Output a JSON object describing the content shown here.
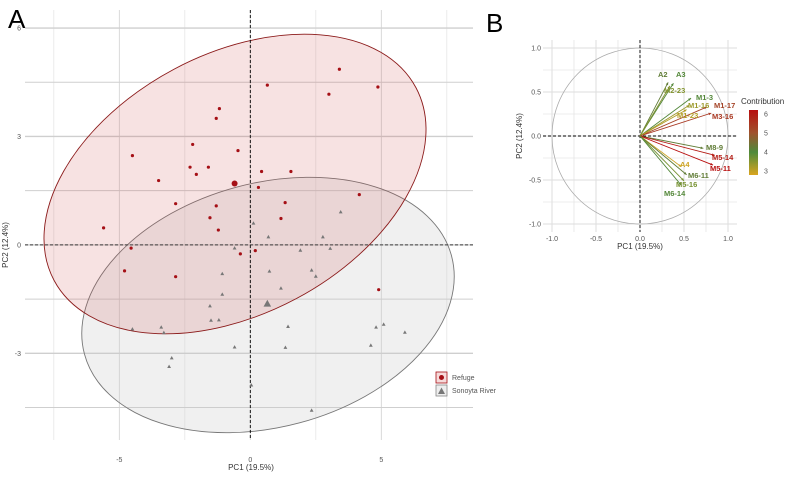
{
  "chart_data": [
    {
      "type": "scatter",
      "panel_label": "A",
      "xlabel": "PC1 (19.5%)",
      "ylabel": "PC2 (12.4%)",
      "xlim": [
        -8.6,
        8.5
      ],
      "ylim": [
        -5.4,
        6.5
      ],
      "xticks": [
        -5,
        0,
        5
      ],
      "yticks": [
        -3,
        0,
        3,
        6
      ],
      "grid": true,
      "reference_lines": {
        "x": 0,
        "y": 0,
        "style": "dashed"
      },
      "legend_position": "right",
      "colors": {
        "Refuge": "#a50f15",
        "Sonoyta River": "#777777"
      },
      "series": [
        {
          "name": "Refuge",
          "marker": "circle",
          "centroid": [
            -0.6,
            1.7
          ],
          "points": [
            [
              -5.6,
              0.47
            ],
            [
              -4.5,
              2.47
            ],
            [
              -4.55,
              -0.09
            ],
            [
              -4.8,
              -0.72
            ],
            [
              -3.5,
              1.78
            ],
            [
              -2.85,
              1.14
            ],
            [
              -2.85,
              -0.88
            ],
            [
              -2.3,
              2.15
            ],
            [
              -2.2,
              2.78
            ],
            [
              -2.06,
              1.95
            ],
            [
              -1.6,
              2.15
            ],
            [
              -1.54,
              0.75
            ],
            [
              -1.3,
              3.5
            ],
            [
              -1.3,
              1.08
            ],
            [
              -1.22,
              0.41
            ],
            [
              -1.18,
              3.77
            ],
            [
              -0.47,
              2.61
            ],
            [
              -0.38,
              -0.25
            ],
            [
              0.19,
              -0.16
            ],
            [
              0.31,
              1.59
            ],
            [
              0.43,
              2.03
            ],
            [
              0.65,
              4.42
            ],
            [
              1.17,
              0.73
            ],
            [
              1.33,
              1.17
            ],
            [
              1.55,
              2.03
            ],
            [
              3.0,
              4.17
            ],
            [
              3.4,
              4.86
            ],
            [
              4.16,
              1.39
            ],
            [
              4.87,
              4.37
            ],
            [
              4.9,
              -1.24
            ]
          ]
        },
        {
          "name": "Sonoyta River",
          "marker": "triangle",
          "centroid": [
            0.65,
            -1.63
          ],
          "points": [
            [
              -4.5,
              -2.33
            ],
            [
              -3.4,
              -2.28
            ],
            [
              -3.3,
              -2.43
            ],
            [
              -3.0,
              -3.13
            ],
            [
              -3.1,
              -3.37
            ],
            [
              -1.54,
              -1.69
            ],
            [
              -1.5,
              -2.09
            ],
            [
              -1.2,
              -2.08
            ],
            [
              -1.07,
              -0.8
            ],
            [
              -1.07,
              -1.37
            ],
            [
              -0.6,
              -2.83
            ],
            [
              -0.6,
              -0.09
            ],
            [
              0.04,
              -3.88
            ],
            [
              0.12,
              0.6
            ],
            [
              0.69,
              0.22
            ],
            [
              0.73,
              -0.73
            ],
            [
              1.17,
              -1.2
            ],
            [
              1.34,
              -2.84
            ],
            [
              1.44,
              -2.26
            ],
            [
              1.91,
              -0.15
            ],
            [
              2.34,
              -0.7
            ],
            [
              2.34,
              -4.58
            ],
            [
              2.5,
              -0.87
            ],
            [
              2.77,
              0.22
            ],
            [
              3.05,
              -0.1
            ],
            [
              3.45,
              0.91
            ],
            [
              4.6,
              -2.78
            ],
            [
              4.8,
              -2.28
            ],
            [
              5.09,
              -2.2
            ],
            [
              5.9,
              -2.42
            ]
          ]
        }
      ]
    },
    {
      "type": "biplot-vectors",
      "panel_label": "B",
      "xlabel": "PC1 (19.5%)",
      "ylabel": "PC2 (12.4%)",
      "xlim": [
        -1.1,
        1.1
      ],
      "ylim": [
        -1.1,
        1.1
      ],
      "xticks": [
        "-1.0",
        "-0.5",
        "0.0",
        "0.5",
        "1.0"
      ],
      "yticks": [
        "-1.0",
        "-0.5",
        "0.0",
        "0.5",
        "1.0"
      ],
      "grid": true,
      "legend": {
        "title": "Contribution",
        "ticks": [
          "3",
          "4",
          "5",
          "6"
        ],
        "range": [
          2.8,
          6.2
        ],
        "colors": [
          "#d9a520",
          "#4e8a3a",
          "#a0522d",
          "#b80f0f"
        ],
        "position": "right"
      },
      "vectors": [
        {
          "label": "A2",
          "x": 0.32,
          "y": 0.61,
          "contribution": 4.2
        },
        {
          "label": "A3",
          "x": 0.38,
          "y": 0.6,
          "contribution": 4.0
        },
        {
          "label": "M2-23",
          "x": 0.34,
          "y": 0.57,
          "contribution": 3.5
        },
        {
          "label": "M1-3",
          "x": 0.58,
          "y": 0.43,
          "contribution": 4.0
        },
        {
          "label": "M1-16",
          "x": 0.56,
          "y": 0.35,
          "contribution": 3.3
        },
        {
          "label": "M1-17",
          "x": 0.76,
          "y": 0.33,
          "contribution": 5.3
        },
        {
          "label": "M1-23",
          "x": 0.53,
          "y": 0.3,
          "contribution": 3.1
        },
        {
          "label": "M3-16",
          "x": 0.81,
          "y": 0.26,
          "contribution": 5.5
        },
        {
          "label": "M8-9",
          "x": 0.72,
          "y": -0.14,
          "contribution": 4.2
        },
        {
          "label": "M5-14",
          "x": 0.85,
          "y": -0.22,
          "contribution": 6.0
        },
        {
          "label": "M5-11",
          "x": 0.83,
          "y": -0.33,
          "contribution": 6.2
        },
        {
          "label": "A4",
          "x": 0.47,
          "y": -0.35,
          "contribution": 2.9
        },
        {
          "label": "M6-11",
          "x": 0.53,
          "y": -0.44,
          "contribution": 4.2
        },
        {
          "label": "M5-16",
          "x": 0.5,
          "y": -0.51,
          "contribution": 3.6
        },
        {
          "label": "M6-14",
          "x": 0.47,
          "y": -0.56,
          "contribution": 4.0
        }
      ]
    }
  ]
}
